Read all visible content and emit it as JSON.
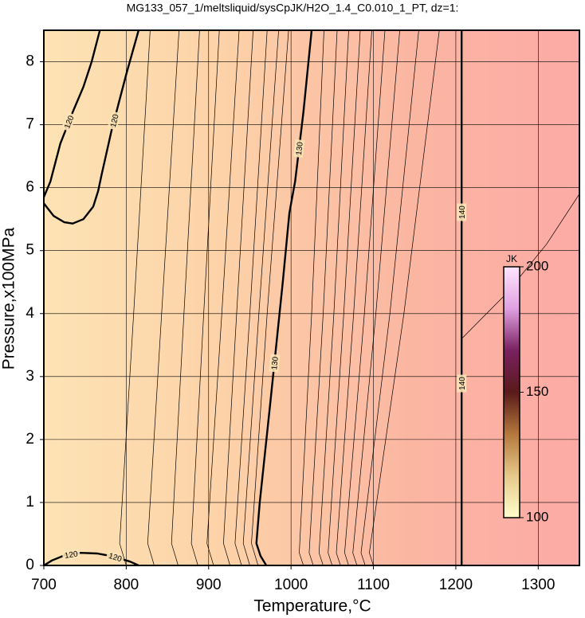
{
  "chart_data": {
    "type": "contour",
    "title": "MG133_057_1/meltsliquid/sysCpJK/H2O_1.4_C0.010_1_PT, dz=1:",
    "xlabel": "Temperature,°C",
    "ylabel": "Pressure,x100MPa",
    "xlim": [
      700,
      1350
    ],
    "ylim": [
      0,
      8.5
    ],
    "xticks": [
      700,
      800,
      900,
      1000,
      1100,
      1200,
      1300
    ],
    "yticks": [
      0,
      1,
      2,
      3,
      4,
      5,
      6,
      7,
      8
    ],
    "grid": true,
    "background_colors": [
      "#fde3b5",
      "#fdd2a8",
      "#fbb7a2",
      "#fcaaa5"
    ],
    "contours": [
      {
        "level": 120,
        "x": [
          700,
          708,
          720,
          735,
          748,
          758,
          768
        ],
        "y": [
          5.85,
          6.1,
          6.7,
          7.2,
          7.6,
          8.0,
          8.5
        ]
      },
      {
        "level": 120,
        "x": [
          700,
          712,
          725,
          735,
          748,
          760,
          766,
          770,
          782,
          800,
          815
        ],
        "y": [
          5.75,
          5.55,
          5.45,
          5.43,
          5.5,
          5.7,
          5.95,
          6.2,
          6.9,
          7.8,
          8.5
        ]
      },
      {
        "level": 120,
        "x": [
          700,
          710,
          725,
          745,
          765,
          785,
          805,
          815
        ],
        "y": [
          0,
          0.08,
          0.16,
          0.2,
          0.19,
          0.14,
          0.06,
          0
        ]
      },
      {
        "level": 121,
        "x": [
          800,
          792,
          809,
          829
        ],
        "y": [
          0,
          0.35,
          4,
          8.5
        ]
      },
      {
        "level": 122,
        "x": [
          834,
          826,
          843,
          864
        ],
        "y": [
          0,
          0.35,
          4,
          8.5
        ]
      },
      {
        "level": 123,
        "x": [
          863,
          855,
          870,
          889
        ],
        "y": [
          0,
          0.35,
          4,
          8.5
        ]
      },
      {
        "level": 124,
        "x": [
          887,
          879,
          894,
          913
        ],
        "y": [
          0,
          0.35,
          4,
          8.5
        ]
      },
      {
        "level": 125,
        "x": [
          906,
          898,
          916,
          937
        ],
        "y": [
          0,
          0.35,
          4,
          8.5
        ]
      },
      {
        "level": 126,
        "x": [
          926,
          918,
          934,
          954
        ],
        "y": [
          0,
          0.35,
          4,
          8.5
        ]
      },
      {
        "level": 127,
        "x": [
          940,
          932,
          950,
          971
        ],
        "y": [
          0,
          0.35,
          4,
          8.5
        ]
      },
      {
        "level": 128,
        "x": [
          950,
          942,
          961,
          985
        ],
        "y": [
          0,
          0.35,
          4,
          8.5
        ]
      },
      {
        "level": 129,
        "x": [
          960,
          952,
          971,
          997
        ],
        "y": [
          0,
          0.35,
          4,
          8.5
        ]
      },
      {
        "level": 130,
        "x": [
          1025,
          1015,
          1005,
          998,
          990,
          975,
          962,
          958,
          963,
          970
        ],
        "y": [
          8.5,
          7.2,
          6.1,
          5.6,
          4.5,
          2.6,
          1.0,
          0.35,
          0.15,
          0
        ]
      },
      {
        "level": 131,
        "x": [
          1015,
          1010,
          1025,
          1040
        ],
        "y": [
          0,
          0.2,
          4,
          8.5
        ]
      },
      {
        "level": 132,
        "x": [
          1027,
          1022,
          1039,
          1056
        ],
        "y": [
          0,
          0.2,
          4,
          8.5
        ]
      },
      {
        "level": 133,
        "x": [
          1039,
          1034,
          1052,
          1070
        ],
        "y": [
          0,
          0.2,
          4,
          8.5
        ]
      },
      {
        "level": 134,
        "x": [
          1050,
          1045,
          1064,
          1084
        ],
        "y": [
          0,
          0.2,
          4,
          8.5
        ]
      },
      {
        "level": 135,
        "x": [
          1060,
          1055,
          1076,
          1098
        ],
        "y": [
          0,
          0.2,
          4,
          8.5
        ]
      },
      {
        "level": 136,
        "x": [
          1070,
          1065,
          1089,
          1114
        ],
        "y": [
          0,
          0.2,
          4,
          8.5
        ]
      },
      {
        "level": 137,
        "x": [
          1080,
          1075,
          1103,
          1132
        ],
        "y": [
          0,
          0.2,
          4,
          8.5
        ]
      },
      {
        "level": 138,
        "x": [
          1090,
          1085,
          1120,
          1155
        ],
        "y": [
          0,
          0.2,
          4,
          8.5
        ]
      },
      {
        "level": 139,
        "x": [
          1100,
          1095,
          1137,
          1180
        ],
        "y": [
          0,
          0.2,
          4,
          8.5
        ]
      },
      {
        "level": 140,
        "x": [
          1207,
          1207
        ],
        "y": [
          0,
          8.5
        ]
      },
      {
        "level": 141,
        "x": [
          1207,
          1260,
          1310,
          1350
        ],
        "y": [
          3.6,
          4.3,
          5.1,
          5.9
        ]
      }
    ],
    "colorbar": {
      "label": "JK",
      "clim": [
        100,
        200
      ],
      "ticks": [
        100,
        150,
        200
      ],
      "colors": [
        "#ffffcc",
        "#e6c88a",
        "#b4783c",
        "#5a1a1a",
        "#7a2060",
        "#e0a0e0",
        "#ffe6ff"
      ]
    }
  }
}
